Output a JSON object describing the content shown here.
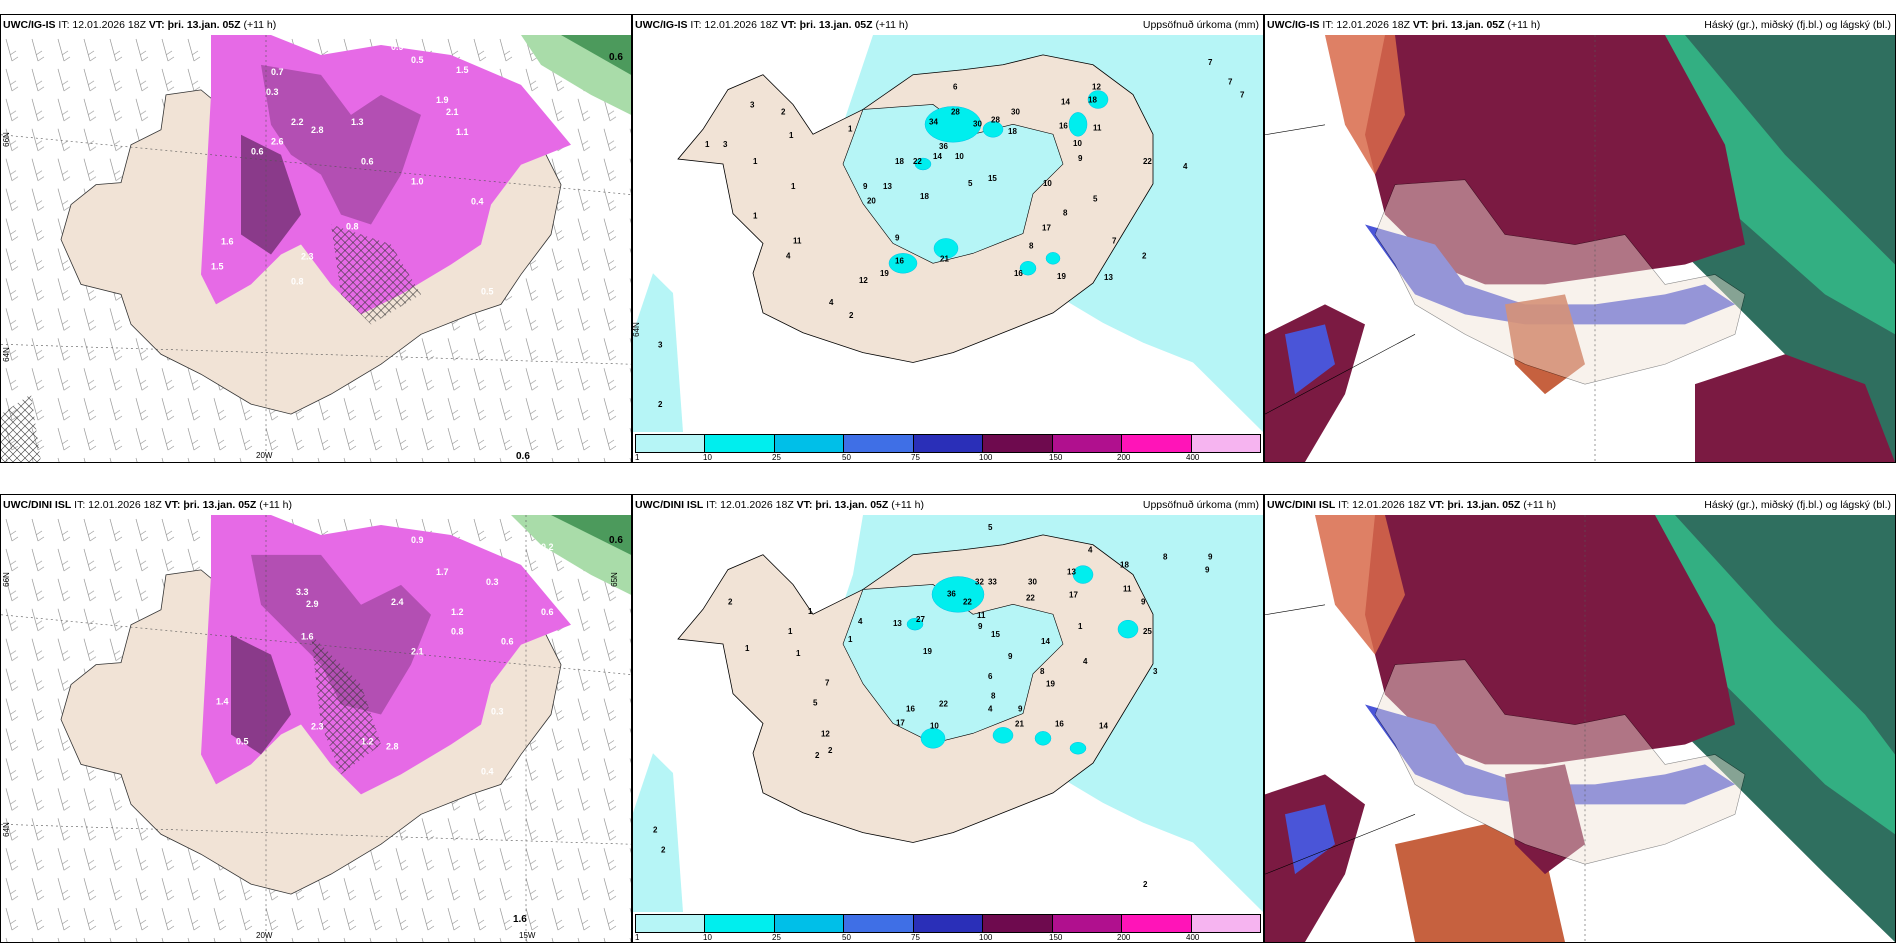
{
  "panels": [
    {
      "model": "UWC/IG-IS",
      "it": "IT: 12.01.2026 18Z",
      "vt_label": "VT:",
      "vt_value": "þri. 13.jan. 05Z",
      "lead": "(+11 h)",
      "right_title": ""
    },
    {
      "model": "UWC/IG-IS",
      "it": "IT: 12.01.2026 18Z",
      "vt_label": "VT:",
      "vt_value": "þri. 13.jan. 05Z",
      "lead": "(+11 h)",
      "right_title": "Uppsöfnuð úrkoma (mm)"
    },
    {
      "model": "UWC/IG-IS",
      "it": "IT: 12.01.2026 18Z",
      "vt_label": "VT:",
      "vt_value": "þri. 13.jan. 05Z",
      "lead": "(+11 h)",
      "right_title": "Háský (gr.), miðský (fj.bl.) og lágský (bl.)"
    },
    {
      "model": "UWC/DINI ISL",
      "it": "IT: 12.01.2026 18Z",
      "vt_label": "VT:",
      "vt_value": "þri. 13.jan. 05Z",
      "lead": "(+11 h)",
      "right_title": ""
    },
    {
      "model": "UWC/DINI ISL",
      "it": "IT: 12.01.2026 18Z",
      "vt_label": "VT:",
      "vt_value": "þri. 13.jan. 05Z",
      "lead": "(+11 h)",
      "right_title": "Uppsöfnuð úrkoma (mm)"
    },
    {
      "model": "UWC/DINI ISL",
      "it": "IT: 12.01.2026 18Z",
      "vt_label": "VT:",
      "vt_value": "þri. 13.jan. 05Z",
      "lead": "(+11 h)",
      "right_title": "Háský (gr.), miðský (fj.bl.) og lágský (bl.)"
    }
  ],
  "grid_labels": {
    "lon_20w": "20W",
    "lon_15w": "15W",
    "lat_66n": "66N",
    "lat_64n": "64N",
    "lat_65n": "65N"
  },
  "legend": {
    "colors": [
      "#b6f5f6",
      "#00eeee",
      "#00bfe8",
      "#3f6fe6",
      "#2a2fb8",
      "#6e0a4e",
      "#b0108e",
      "#ff14b8",
      "#f6b4f0"
    ],
    "ticks": [
      "1",
      "10",
      "25",
      "50",
      "75",
      "100",
      "150",
      "200",
      "400"
    ]
  },
  "snow_labels_top": [
    "0.9",
    "0.5",
    "1.5",
    "0.7",
    "1.9",
    "2.1",
    "0.3",
    "1.1",
    "2.2",
    "2.8",
    "1.3",
    "0.6",
    "2.3",
    "0.8",
    "1.0",
    "0.4",
    "0.6",
    "1.6",
    "2.6",
    "0.8",
    "0.5",
    "1.5"
  ],
  "snow_labels_bot": [
    "0.9",
    "3.3",
    "2.9",
    "1.7",
    "1.2",
    "0.8",
    "2.4",
    "0.3",
    "0.6",
    "1.6",
    "0.5",
    "0.2",
    "0.6",
    "2.3",
    "1.2",
    "2.1",
    "0.4",
    "1.4",
    "2.8",
    "0.3"
  ],
  "corner_values_top": [
    "0.6",
    "0.6"
  ],
  "corner_values_bot": [
    "0.6",
    "1.6"
  ],
  "precip_labels_top": [
    "6",
    "7",
    "7",
    "7",
    "3",
    "28",
    "30",
    "34",
    "36",
    "28",
    "30",
    "18",
    "14",
    "16",
    "12",
    "18",
    "11",
    "10",
    "22",
    "9",
    "4",
    "18",
    "22",
    "14",
    "10",
    "15",
    "5",
    "18",
    "13",
    "9",
    "20",
    "10",
    "8",
    "5",
    "17",
    "7",
    "11",
    "9",
    "8",
    "2",
    "4",
    "16",
    "19",
    "21",
    "16",
    "19",
    "13",
    "12",
    "4",
    "2",
    "3",
    "2",
    "1",
    "1",
    "1",
    "1",
    "1",
    "3",
    "2",
    "1"
  ],
  "precip_labels_bot": [
    "5",
    "4",
    "8",
    "9",
    "9",
    "13",
    "17",
    "18",
    "11",
    "9",
    "32",
    "33",
    "36",
    "22",
    "30",
    "22",
    "13",
    "27",
    "19",
    "15",
    "11",
    "9",
    "25",
    "14",
    "9",
    "4",
    "8",
    "6",
    "19",
    "8",
    "22",
    "4",
    "9",
    "16",
    "17",
    "21",
    "16",
    "14",
    "12",
    "10",
    "7",
    "5",
    "2",
    "2",
    "2",
    "2",
    "2",
    "1",
    "1",
    "1",
    "1",
    "1",
    "4",
    "1",
    "2",
    "3"
  ]
}
